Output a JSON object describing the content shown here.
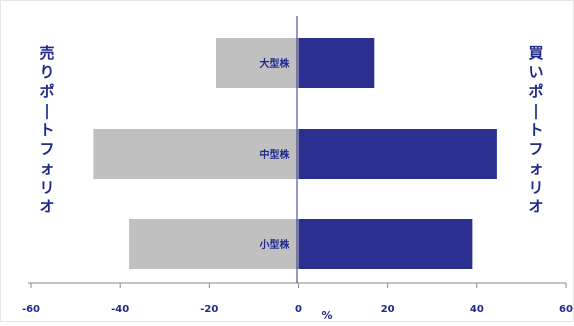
{
  "chart_data": {
    "type": "bar",
    "orientation": "horizontal",
    "layout": "diverging",
    "categories": [
      "大型株",
      "中型株",
      "小型株"
    ],
    "series": [
      {
        "name": "売りポートフォリオ",
        "values": [
          -18.5,
          -46,
          -38
        ],
        "color": "#c0c0c0"
      },
      {
        "name": "買いポートフォリオ",
        "values": [
          17,
          44.5,
          39
        ],
        "color": "#2b2f8f"
      }
    ],
    "x_ticks": [
      "-60",
      "-40",
      "-20",
      "0",
      "20",
      "40",
      "60"
    ],
    "xlim": [
      -60,
      60
    ],
    "xlabel": "%",
    "ylabel": "",
    "grid": false,
    "left_side_label": "売りポートフォリオ",
    "right_side_label": "買いポートフォリオ"
  }
}
